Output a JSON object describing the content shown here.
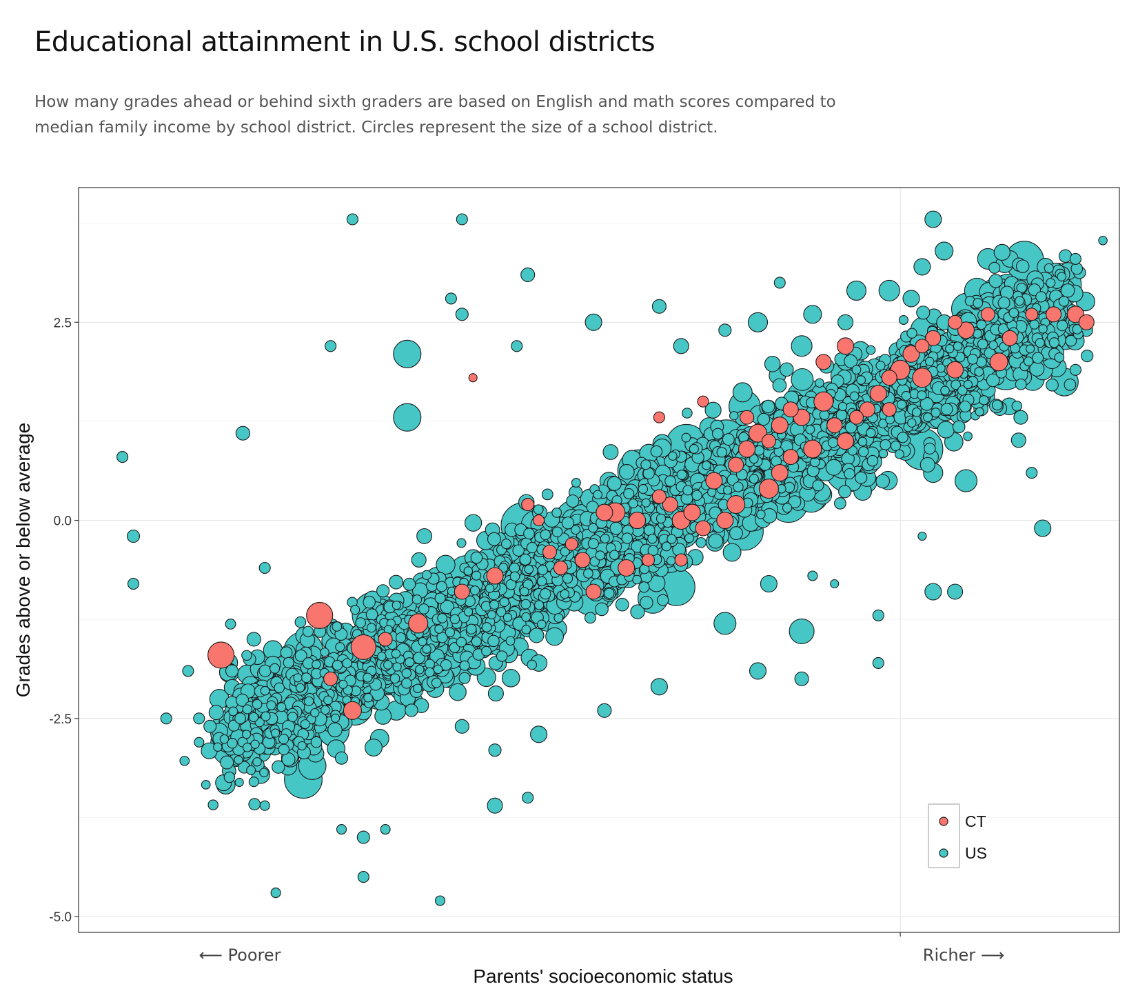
{
  "title": "Educational attainment in U.S. school districts",
  "subtitle": "How many grades ahead or behind sixth graders are based on English and math scores compared to median family income by school district. Circles represent the size of a school district.",
  "chart_data": {
    "type": "scatter",
    "xlabel": "Parents' socioeconomic status",
    "ylabel": "Grades above or below average",
    "xlim": [
      -5,
      4.5
    ],
    "ylim": [
      -5.2,
      4.2
    ],
    "yticks": [
      2.5,
      0.0,
      -2.5,
      -5.0
    ],
    "yticklabels": [
      "2.5",
      "0.0",
      "-2.5",
      "-5.0"
    ],
    "xticks_at": [
      2.5
    ],
    "x_left_label": "⟵ Poorer",
    "x_right_label": "Richer ⟶",
    "legend": {
      "position": "bottom-right",
      "entries": [
        {
          "name": "CT",
          "color": "#F8766D"
        },
        {
          "name": "US",
          "color": "#47C6C6"
        }
      ]
    },
    "colors": {
      "CT": "#F8766D",
      "US": "#47C6C6",
      "outline": "#1a1a1a"
    },
    "series": [
      {
        "name": "US",
        "points": [
          [
            -4.6,
            0.8,
            8
          ],
          [
            -4.5,
            -0.2,
            9
          ],
          [
            -4.5,
            -0.8,
            8
          ],
          [
            -3.5,
            1.1,
            10
          ],
          [
            -3.3,
            -0.6,
            8
          ],
          [
            -3.4,
            -2.5,
            8
          ],
          [
            -3.4,
            -3.3,
            7
          ],
          [
            -2.5,
            3.8,
            8
          ],
          [
            -2.0,
            2.1,
            20
          ],
          [
            -1.5,
            3.8,
            8
          ],
          [
            -1.6,
            2.8,
            8
          ],
          [
            -3.3,
            -3.6,
            7
          ],
          [
            -2.4,
            -4.5,
            8
          ],
          [
            -3.2,
            -4.7,
            7
          ],
          [
            -3.9,
            -2.5,
            8
          ],
          [
            -4.2,
            -2.5,
            8
          ],
          [
            -4.0,
            -1.9,
            8
          ],
          [
            -3.9,
            -2.8,
            7
          ],
          [
            -1.7,
            -4.8,
            7
          ],
          [
            -2.6,
            -3.9,
            7
          ],
          [
            -2.4,
            -4.0,
            9
          ],
          [
            -2.2,
            -3.9,
            7
          ],
          [
            -1.2,
            -3.6,
            11
          ],
          [
            -1.0,
            2.2,
            8
          ],
          [
            -0.9,
            3.1,
            10
          ],
          [
            -1.5,
            2.6,
            9
          ],
          [
            -0.3,
            2.5,
            12
          ],
          [
            -2.0,
            1.3,
            20
          ],
          [
            -2.7,
            2.2,
            8
          ],
          [
            2.8,
            3.8,
            12
          ],
          [
            2.6,
            2.8,
            12
          ],
          [
            2.7,
            3.2,
            12
          ],
          [
            2.9,
            3.4,
            13
          ],
          [
            3.2,
            2.9,
            18
          ],
          [
            3.3,
            3.3,
            15
          ],
          [
            3.5,
            3.3,
            12
          ],
          [
            3.9,
            3.0,
            14
          ],
          [
            4.0,
            2.7,
            11
          ],
          [
            4.1,
            2.5,
            10
          ],
          [
            4.1,
            3.3,
            8
          ],
          [
            4.2,
            2.4,
            9
          ],
          [
            4.1,
            1.9,
            8
          ],
          [
            3.8,
            2.3,
            12
          ],
          [
            3.5,
            2.6,
            13
          ],
          [
            3.3,
            2.0,
            14
          ],
          [
            3.6,
            1.3,
            10
          ],
          [
            3.7,
            0.6,
            8
          ],
          [
            3.8,
            -0.1,
            12
          ],
          [
            3.1,
            0.5,
            16
          ],
          [
            2.8,
            0.6,
            14
          ],
          [
            2.7,
            -0.2,
            6
          ],
          [
            2.8,
            -0.9,
            12
          ],
          [
            3.0,
            -0.9,
            11
          ],
          [
            2.3,
            -1.8,
            8
          ],
          [
            2.3,
            -1.2,
            8
          ],
          [
            1.9,
            -0.8,
            6
          ],
          [
            1.7,
            -0.7,
            7
          ],
          [
            1.6,
            -1.4,
            18
          ],
          [
            1.6,
            -2.0,
            10
          ],
          [
            1.2,
            -1.9,
            12
          ],
          [
            1.3,
            -0.8,
            12
          ],
          [
            2.4,
            1.6,
            15
          ],
          [
            2.5,
            1.3,
            18
          ],
          [
            2.7,
            0.9,
            30
          ],
          [
            2.4,
            2.9,
            15
          ],
          [
            2.1,
            2.9,
            14
          ],
          [
            2.0,
            2.5,
            11
          ],
          [
            1.4,
            3.0,
            8
          ],
          [
            1.7,
            2.6,
            13
          ],
          [
            1.6,
            2.2,
            15
          ],
          [
            1.2,
            2.5,
            14
          ],
          [
            0.9,
            2.4,
            9
          ],
          [
            0.5,
            2.2,
            11
          ],
          [
            0.3,
            2.7,
            10
          ],
          [
            -0.9,
            -3.5,
            8
          ],
          [
            -0.8,
            -2.7,
            12
          ],
          [
            -1.2,
            -2.9,
            9
          ],
          [
            -1.5,
            -2.6,
            10
          ],
          [
            -2.1,
            -2.4,
            14
          ],
          [
            -2.6,
            -3.0,
            9
          ],
          [
            -2.9,
            -2.7,
            8
          ],
          [
            -3.6,
            -2.3,
            9
          ],
          [
            -3.4,
            -1.5,
            10
          ],
          [
            -3.6,
            -1.9,
            9
          ],
          [
            -3.8,
            -2.6,
            9
          ],
          [
            -0.2,
            -2.4,
            10
          ],
          [
            0.3,
            -2.1,
            12
          ],
          [
            0.9,
            -1.3,
            16
          ],
          [
            -0.8,
            -1.8,
            12
          ]
        ],
        "cluster": {
          "description": "dense mass of school districts along the diagonal trend",
          "count": 2800,
          "seed": 42
        }
      },
      {
        "name": "CT",
        "points": [
          [
            -1.4,
            1.8,
            6
          ],
          [
            -0.9,
            0.2,
            9
          ],
          [
            -0.8,
            0.0,
            8
          ],
          [
            -0.7,
            -0.4,
            10
          ],
          [
            -0.5,
            -0.3,
            9
          ],
          [
            -0.4,
            -0.5,
            11
          ],
          [
            -0.2,
            0.1,
            12
          ],
          [
            -0.1,
            0.1,
            14
          ],
          [
            0.1,
            0.0,
            12
          ],
          [
            0.3,
            0.3,
            10
          ],
          [
            0.4,
            0.2,
            11
          ],
          [
            0.2,
            -0.5,
            9
          ],
          [
            0.5,
            0.0,
            13
          ],
          [
            0.6,
            0.1,
            12
          ],
          [
            0.7,
            -0.1,
            11
          ],
          [
            0.8,
            0.5,
            12
          ],
          [
            1.0,
            0.7,
            11
          ],
          [
            1.1,
            0.9,
            12
          ],
          [
            1.2,
            1.1,
            13
          ],
          [
            1.3,
            1.0,
            10
          ],
          [
            1.4,
            1.2,
            12
          ],
          [
            1.5,
            1.4,
            11
          ],
          [
            1.6,
            1.3,
            12
          ],
          [
            1.8,
            1.5,
            14
          ],
          [
            1.9,
            1.2,
            11
          ],
          [
            2.0,
            1.0,
            12
          ],
          [
            2.1,
            1.3,
            10
          ],
          [
            2.2,
            1.4,
            11
          ],
          [
            2.3,
            1.6,
            12
          ],
          [
            2.4,
            1.8,
            11
          ],
          [
            2.5,
            1.9,
            14
          ],
          [
            2.6,
            2.1,
            12
          ],
          [
            2.7,
            2.2,
            10
          ],
          [
            2.8,
            2.3,
            11
          ],
          [
            3.0,
            2.5,
            10
          ],
          [
            3.1,
            2.4,
            12
          ],
          [
            3.3,
            2.6,
            10
          ],
          [
            3.5,
            2.3,
            11
          ],
          [
            3.7,
            2.6,
            9
          ],
          [
            3.9,
            2.6,
            11
          ],
          [
            4.1,
            2.6,
            12
          ],
          [
            4.2,
            2.5,
            11
          ],
          [
            3.4,
            2.0,
            13
          ],
          [
            3.0,
            1.9,
            12
          ],
          [
            2.7,
            1.8,
            14
          ],
          [
            2.4,
            1.4,
            10
          ],
          [
            1.7,
            0.9,
            13
          ],
          [
            1.4,
            0.6,
            12
          ],
          [
            1.3,
            0.4,
            14
          ],
          [
            1.0,
            0.2,
            13
          ],
          [
            0.9,
            0.0,
            12
          ],
          [
            0.5,
            -0.5,
            9
          ],
          [
            0.0,
            -0.6,
            12
          ],
          [
            -0.3,
            -0.9,
            11
          ],
          [
            -0.6,
            -0.6,
            10
          ],
          [
            -1.2,
            -0.7,
            12
          ],
          [
            -1.5,
            -0.9,
            11
          ],
          [
            -1.9,
            -1.3,
            14
          ],
          [
            -2.4,
            -1.6,
            18
          ],
          [
            -2.8,
            -1.2,
            19
          ],
          [
            -3.7,
            -1.7,
            19
          ],
          [
            -2.7,
            -2.0,
            10
          ],
          [
            -2.5,
            -2.4,
            13
          ],
          [
            -2.2,
            -1.5,
            10
          ],
          [
            1.8,
            2.0,
            11
          ],
          [
            2.0,
            2.2,
            12
          ],
          [
            1.5,
            0.8,
            11
          ],
          [
            1.1,
            1.3,
            10
          ],
          [
            0.7,
            1.5,
            8
          ],
          [
            0.3,
            1.3,
            8
          ]
        ]
      }
    ]
  }
}
